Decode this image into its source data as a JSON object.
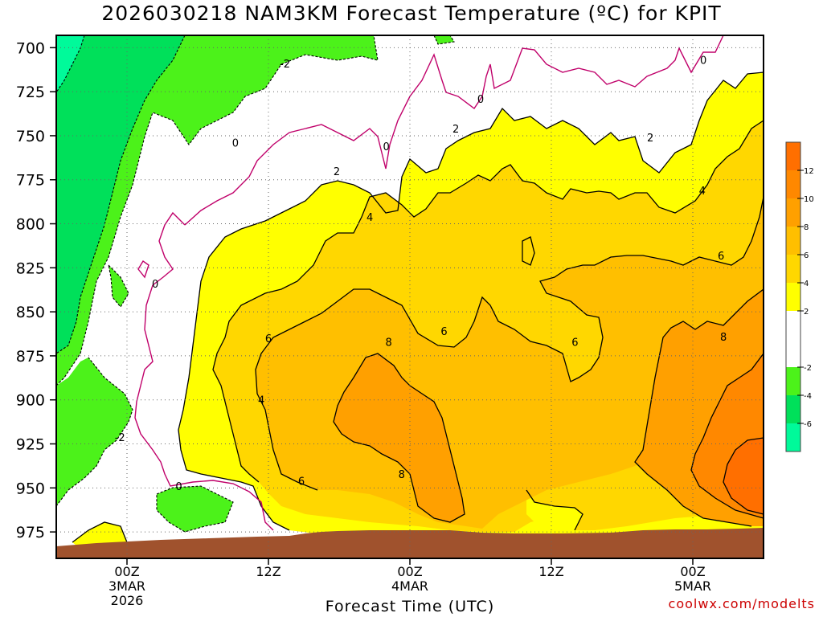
{
  "title": "2026030218 NAM3KM Forecast Temperature (ºC) for KPIT",
  "xlabel": "Forecast Time (UTC)",
  "credit": "coolwx.com/modelts",
  "chart_data": {
    "type": "heatmap",
    "title": "2026030218 NAM3KM Forecast Temperature (ºC) for KPIT",
    "xlabel": "Forecast Time (UTC)",
    "ylabel": "",
    "x_ticks": [
      {
        "label": "00Z",
        "sub": [
          "3MAR",
          "2026"
        ],
        "hour": 6
      },
      {
        "label": "12Z",
        "sub": [],
        "hour": 18
      },
      {
        "label": "00Z",
        "sub": [
          "4MAR"
        ],
        "hour": 30
      },
      {
        "label": "12Z",
        "sub": [],
        "hour": 42
      },
      {
        "label": "00Z",
        "sub": [
          "5MAR"
        ],
        "hour": 54
      }
    ],
    "xlim": [
      0,
      60
    ],
    "y_ticks": [
      700,
      725,
      750,
      775,
      800,
      825,
      850,
      875,
      900,
      925,
      950,
      975
    ],
    "ylim": [
      693,
      990
    ],
    "colorbar": {
      "labels": [
        "-6",
        "-4",
        "-2",
        "2",
        "4",
        "6",
        "8",
        "10",
        "12"
      ],
      "bands": [
        {
          "lo": -8,
          "hi": -6,
          "color": "#00fa9a"
        },
        {
          "lo": -6,
          "hi": -4,
          "color": "#00e05a"
        },
        {
          "lo": -4,
          "hi": -2,
          "color": "#4cf21a"
        },
        {
          "lo": -2,
          "hi": 2,
          "color": "#ffffff"
        },
        {
          "lo": 2,
          "hi": 4,
          "color": "#ffff00"
        },
        {
          "lo": 4,
          "hi": 6,
          "color": "#ffd700"
        },
        {
          "lo": 6,
          "hi": 8,
          "color": "#ffbf00"
        },
        {
          "lo": 8,
          "hi": 10,
          "color": "#ffa000"
        },
        {
          "lo": 10,
          "hi": 12,
          "color": "#ff8800"
        },
        {
          "lo": 12,
          "hi": 14,
          "color": "#ff6f00"
        }
      ]
    },
    "contour_labels": [
      {
        "text": "-2",
        "hour": 19.4,
        "p": 709
      },
      {
        "text": "0",
        "hour": 15.2,
        "p": 754
      },
      {
        "text": "0",
        "hour": 8.4,
        "p": 834
      },
      {
        "text": "-2",
        "hour": 5.4,
        "p": 921
      },
      {
        "text": "0",
        "hour": 10.4,
        "p": 949
      },
      {
        "text": "0",
        "hour": 28.0,
        "p": 756
      },
      {
        "text": "0",
        "hour": 36.0,
        "p": 729
      },
      {
        "text": "0",
        "hour": 54.9,
        "p": 707
      },
      {
        "text": "2",
        "hour": 23.8,
        "p": 770
      },
      {
        "text": "2",
        "hour": 33.9,
        "p": 746
      },
      {
        "text": "2",
        "hour": 50.4,
        "p": 751
      },
      {
        "text": "4",
        "hour": 26.6,
        "p": 796
      },
      {
        "text": "4",
        "hour": 17.4,
        "p": 900
      },
      {
        "text": "4",
        "hour": 54.8,
        "p": 781
      },
      {
        "text": "6",
        "hour": 18.0,
        "p": 865
      },
      {
        "text": "6",
        "hour": 20.8,
        "p": 946
      },
      {
        "text": "6",
        "hour": 32.9,
        "p": 861
      },
      {
        "text": "6",
        "hour": 44.0,
        "p": 867
      },
      {
        "text": "6",
        "hour": 56.4,
        "p": 818
      },
      {
        "text": "8",
        "hour": 28.2,
        "p": 867
      },
      {
        "text": "8",
        "hour": 29.3,
        "p": 942
      },
      {
        "text": "8",
        "hour": 56.6,
        "p": 864
      }
    ],
    "grid": true,
    "ground": true
  }
}
